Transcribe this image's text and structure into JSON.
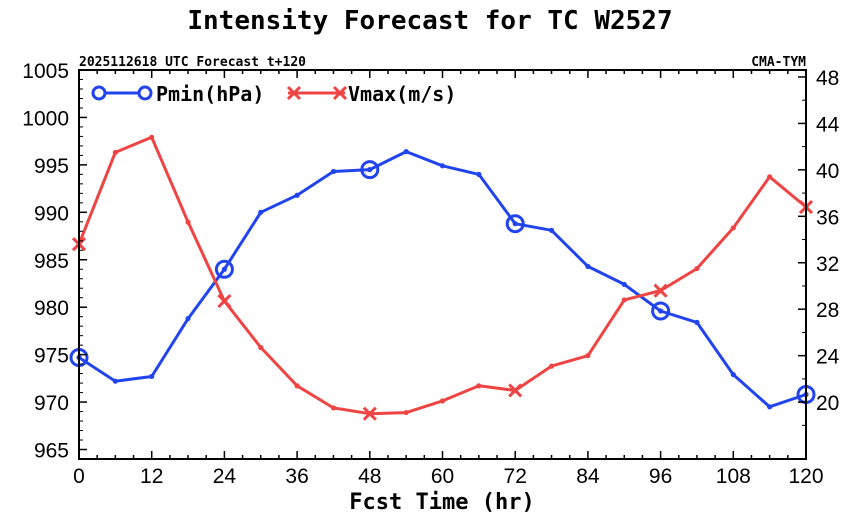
{
  "chart_data": {
    "type": "line",
    "title": "Intensity Forecast for TC W2527",
    "subtitle_left": "2025112618 UTC Forecast t+120",
    "subtitle_right": "CMA-TYM",
    "xlabel": "Fcst Time (hr)",
    "xlim": [
      0,
      120
    ],
    "xticks": [
      0,
      12,
      24,
      36,
      48,
      60,
      72,
      84,
      96,
      108,
      120
    ],
    "y_left": {
      "label": "Pmin(hPa)",
      "lim": [
        964,
        1005
      ],
      "ticks": [
        965,
        970,
        975,
        980,
        985,
        990,
        995,
        1000,
        1005
      ]
    },
    "y_right": {
      "label": "Vmax(m/s)",
      "lim": [
        15.1,
        48.6
      ],
      "ticks": [
        20,
        24,
        28,
        32,
        36,
        40,
        44,
        48
      ]
    },
    "x": [
      0,
      6,
      12,
      18,
      24,
      30,
      36,
      42,
      48,
      54,
      60,
      66,
      72,
      78,
      84,
      90,
      96,
      102,
      108,
      114,
      120
    ],
    "series": [
      {
        "name": "Pmin(hPa)",
        "axis": "left",
        "color": "#2244ee",
        "marker": "circle",
        "marker_at": [
          0,
          24,
          48,
          72,
          96,
          120
        ],
        "values": [
          974.7,
          972.2,
          972.7,
          978.8,
          984.0,
          990.0,
          991.8,
          994.3,
          994.5,
          996.4,
          994.9,
          994.0,
          988.8,
          988.1,
          984.3,
          982.4,
          979.6,
          978.4,
          972.9,
          969.5,
          970.8
        ]
      },
      {
        "name": "Vmax(m/s)",
        "axis": "right",
        "color": "#ee4444",
        "marker": "x",
        "marker_at": [
          0,
          24,
          48,
          72,
          96,
          120
        ],
        "values": [
          33.6,
          41.5,
          42.8,
          35.5,
          28.7,
          24.7,
          21.4,
          19.5,
          19.0,
          19.1,
          20.1,
          21.4,
          21.0,
          23.1,
          24.0,
          28.8,
          29.6,
          31.5,
          35.0,
          39.4,
          36.8
        ]
      }
    ]
  }
}
